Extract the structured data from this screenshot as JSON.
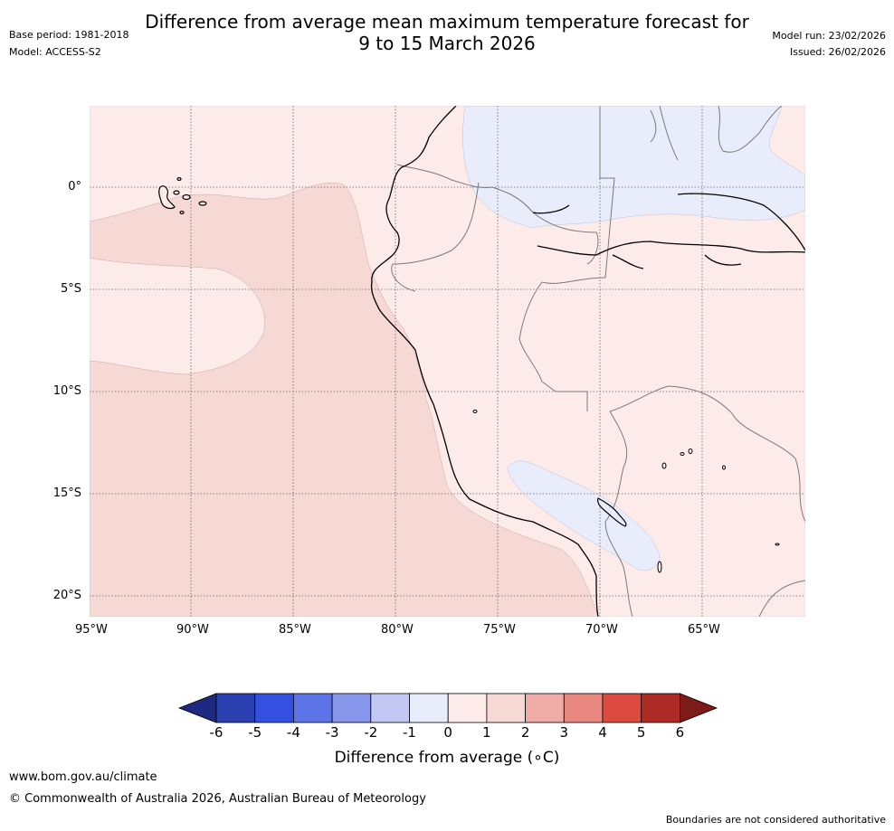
{
  "header": {
    "title_line1": "Difference from average mean maximum temperature forecast for",
    "title_line2": "9 to 15 March 2026",
    "base_period": "Base period: 1981-2018",
    "model": "Model: ACCESS-S2",
    "model_run": "Model run: 23/02/2026",
    "issued": "Issued: 26/02/2026"
  },
  "map": {
    "lon_labels": [
      "95°W",
      "90°W",
      "85°W",
      "80°W",
      "75°W",
      "70°W",
      "65°W"
    ],
    "lat_labels": [
      "0°",
      "5°S",
      "10°S",
      "15°S",
      "20°S"
    ],
    "colors": {
      "ocean_anomaly_1_2": "#f6d8d5",
      "land_anomaly_0_1": "#fcebe9",
      "cool_anomaly_-1_0": "#e9edfb",
      "coastline": "#000000",
      "borders": "#7a7a7a",
      "grid": "#666666"
    }
  },
  "colorbar": {
    "ticks": [
      "-6",
      "-5",
      "-4",
      "-3",
      "-2",
      "-1",
      "0",
      "1",
      "2",
      "3",
      "4",
      "5",
      "6"
    ],
    "colors": [
      "#1e2a82",
      "#2a3fb0",
      "#3450e0",
      "#5c74e8",
      "#8797ec",
      "#c2c8f3",
      "#e9edfb",
      "#fcebe9",
      "#f6d8d5",
      "#efaba6",
      "#e8877e",
      "#dc4a40",
      "#ae2a24",
      "#7c1c18"
    ],
    "label": "Difference from average (∘C)"
  },
  "footer": {
    "url": "www.bom.gov.au/climate",
    "copyright": "© Commonwealth of Australia 2026, Australian Bureau of Meteorology",
    "disclaimer": "Boundaries are not considered authoritative"
  }
}
